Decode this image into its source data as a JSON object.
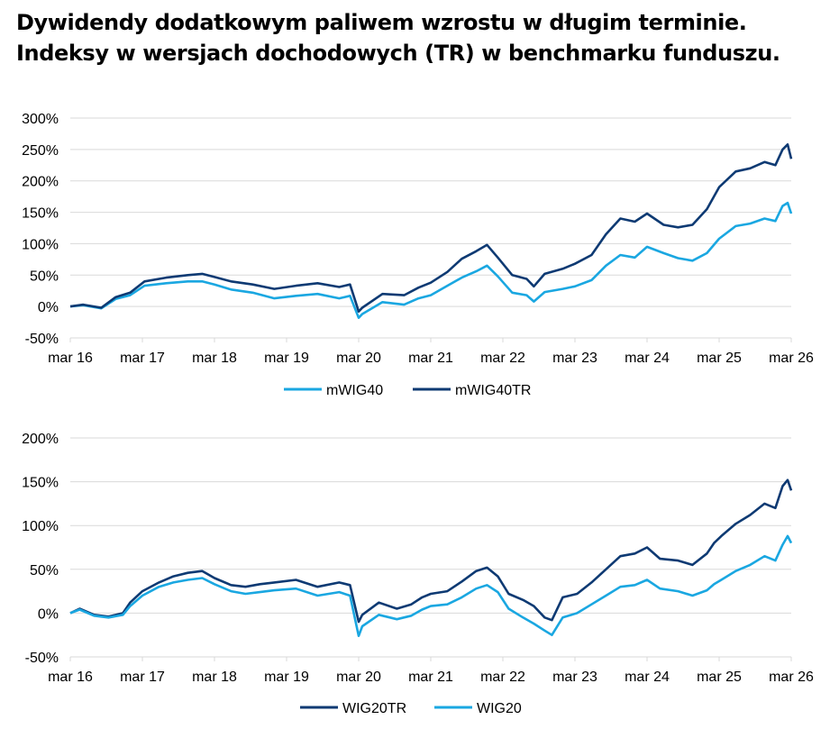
{
  "title": "Dywidendy dodatkowym paliwem wzrostu w długim terminie. Indeksy w wersjach dochodowych (TR) w benchmarku funduszu.",
  "colors": {
    "light": "#1AA7E1",
    "dark": "#0E3A73",
    "grid": "#D9D9D9"
  },
  "chart_data": [
    {
      "type": "line",
      "title": "",
      "xlabel": "",
      "ylabel": "",
      "x_ticks": [
        "mar 16",
        "mar 17",
        "mar 18",
        "mar 19",
        "mar 20",
        "mar 21",
        "mar 22",
        "mar 23",
        "mar 24",
        "mar 25",
        "mar 26"
      ],
      "y_ticks": [
        "300%",
        "250%",
        "200%",
        "150%",
        "100%",
        "50%",
        "0%",
        "-50%"
      ],
      "ylim": [
        -50,
        300
      ],
      "xlim": [
        2016.17,
        2026.17
      ],
      "grid": true,
      "legend_position": "bottom",
      "series": [
        {
          "name": "mWIG40",
          "color": "light",
          "x": [
            2016.17,
            2016.35,
            2016.6,
            2016.8,
            2017.0,
            2017.2,
            2017.5,
            2017.8,
            2018.0,
            2018.17,
            2018.4,
            2018.7,
            2019.0,
            2019.3,
            2019.6,
            2019.9,
            2020.05,
            2020.17,
            2020.22,
            2020.5,
            2020.8,
            2021.0,
            2021.17,
            2021.4,
            2021.6,
            2021.8,
            2021.95,
            2022.1,
            2022.3,
            2022.5,
            2022.6,
            2022.75,
            2023.0,
            2023.17,
            2023.4,
            2023.6,
            2023.8,
            2024.0,
            2024.17,
            2024.4,
            2024.6,
            2024.8,
            2025.0,
            2025.17,
            2025.4,
            2025.6,
            2025.8,
            2025.95,
            2026.05,
            2026.12,
            2026.17
          ],
          "values": [
            0,
            2,
            -3,
            12,
            18,
            33,
            37,
            40,
            40,
            35,
            27,
            22,
            13,
            17,
            20,
            13,
            17,
            -18,
            -12,
            7,
            3,
            13,
            18,
            33,
            46,
            56,
            65,
            48,
            22,
            18,
            8,
            23,
            28,
            32,
            42,
            65,
            82,
            78,
            95,
            85,
            77,
            73,
            85,
            108,
            128,
            132,
            140,
            136,
            160,
            165,
            148
          ]
        },
        {
          "name": "mWIG40TR",
          "color": "dark",
          "x": [
            2016.17,
            2016.35,
            2016.6,
            2016.8,
            2017.0,
            2017.2,
            2017.5,
            2017.8,
            2018.0,
            2018.17,
            2018.4,
            2018.7,
            2019.0,
            2019.3,
            2019.6,
            2019.9,
            2020.05,
            2020.17,
            2020.22,
            2020.5,
            2020.8,
            2021.0,
            2021.17,
            2021.4,
            2021.6,
            2021.8,
            2021.95,
            2022.1,
            2022.3,
            2022.5,
            2022.6,
            2022.75,
            2023.0,
            2023.17,
            2023.4,
            2023.6,
            2023.8,
            2024.0,
            2024.17,
            2024.4,
            2024.6,
            2024.8,
            2025.0,
            2025.17,
            2025.4,
            2025.6,
            2025.8,
            2025.95,
            2026.05,
            2026.12,
            2026.17
          ],
          "values": [
            0,
            3,
            -2,
            15,
            22,
            40,
            46,
            50,
            52,
            47,
            40,
            35,
            28,
            33,
            37,
            31,
            35,
            -8,
            -2,
            20,
            18,
            30,
            38,
            55,
            76,
            88,
            98,
            78,
            50,
            44,
            32,
            52,
            60,
            68,
            82,
            115,
            140,
            135,
            148,
            130,
            126,
            130,
            155,
            190,
            215,
            220,
            230,
            225,
            250,
            258,
            235
          ]
        }
      ]
    },
    {
      "type": "line",
      "title": "",
      "xlabel": "",
      "ylabel": "",
      "x_ticks": [
        "mar 16",
        "mar 17",
        "mar 18",
        "mar 19",
        "mar 20",
        "mar 21",
        "mar 22",
        "mar 23",
        "mar 24",
        "mar 25",
        "mar 26"
      ],
      "y_ticks": [
        "200%",
        "150%",
        "100%",
        "50%",
        "0%",
        "-50%"
      ],
      "ylim": [
        -50,
        200
      ],
      "xlim": [
        2016.17,
        2026.17
      ],
      "grid": true,
      "legend_position": "bottom",
      "series": [
        {
          "name": "WIG20TR",
          "color": "dark",
          "x": [
            2016.17,
            2016.3,
            2016.5,
            2016.7,
            2016.9,
            2017.0,
            2017.17,
            2017.4,
            2017.6,
            2017.8,
            2018.0,
            2018.17,
            2018.4,
            2018.6,
            2018.8,
            2019.0,
            2019.3,
            2019.6,
            2019.9,
            2020.05,
            2020.17,
            2020.22,
            2020.45,
            2020.7,
            2020.9,
            2021.05,
            2021.17,
            2021.4,
            2021.6,
            2021.8,
            2021.95,
            2022.1,
            2022.25,
            2022.45,
            2022.6,
            2022.75,
            2022.85,
            2023.0,
            2023.2,
            2023.4,
            2023.6,
            2023.8,
            2024.0,
            2024.17,
            2024.35,
            2024.6,
            2024.8,
            2025.0,
            2025.1,
            2025.2,
            2025.4,
            2025.6,
            2025.8,
            2025.95,
            2026.05,
            2026.12,
            2026.17
          ],
          "values": [
            0,
            5,
            -2,
            -4,
            0,
            12,
            25,
            35,
            42,
            46,
            48,
            40,
            32,
            30,
            33,
            35,
            38,
            30,
            35,
            32,
            -10,
            -2,
            12,
            5,
            10,
            18,
            22,
            25,
            36,
            48,
            52,
            42,
            22,
            15,
            8,
            -5,
            -8,
            18,
            22,
            35,
            50,
            65,
            68,
            75,
            62,
            60,
            55,
            68,
            80,
            88,
            102,
            112,
            125,
            120,
            145,
            152,
            140
          ]
        },
        {
          "name": "WIG20",
          "color": "light",
          "x": [
            2016.17,
            2016.3,
            2016.5,
            2016.7,
            2016.9,
            2017.0,
            2017.17,
            2017.4,
            2017.6,
            2017.8,
            2018.0,
            2018.17,
            2018.4,
            2018.6,
            2018.8,
            2019.0,
            2019.3,
            2019.6,
            2019.9,
            2020.05,
            2020.17,
            2020.22,
            2020.45,
            2020.7,
            2020.9,
            2021.05,
            2021.17,
            2021.4,
            2021.6,
            2021.8,
            2021.95,
            2022.1,
            2022.25,
            2022.45,
            2022.6,
            2022.75,
            2022.85,
            2023.0,
            2023.2,
            2023.4,
            2023.6,
            2023.8,
            2024.0,
            2024.17,
            2024.35,
            2024.6,
            2024.8,
            2025.0,
            2025.1,
            2025.2,
            2025.4,
            2025.6,
            2025.8,
            2025.95,
            2026.05,
            2026.12,
            2026.17
          ],
          "values": [
            0,
            4,
            -3,
            -5,
            -2,
            8,
            20,
            30,
            35,
            38,
            40,
            33,
            25,
            22,
            24,
            26,
            28,
            20,
            24,
            20,
            -26,
            -15,
            -2,
            -7,
            -3,
            4,
            8,
            10,
            18,
            28,
            32,
            24,
            5,
            -5,
            -12,
            -20,
            -25,
            -5,
            0,
            10,
            20,
            30,
            32,
            38,
            28,
            25,
            20,
            26,
            33,
            38,
            48,
            55,
            65,
            60,
            78,
            88,
            80
          ]
        }
      ]
    }
  ],
  "legends": [
    [
      {
        "label": "mWIG40",
        "color": "light"
      },
      {
        "label": "mWIG40TR",
        "color": "dark"
      }
    ],
    [
      {
        "label": "WIG20TR",
        "color": "dark"
      },
      {
        "label": "WIG20",
        "color": "light"
      }
    ]
  ]
}
